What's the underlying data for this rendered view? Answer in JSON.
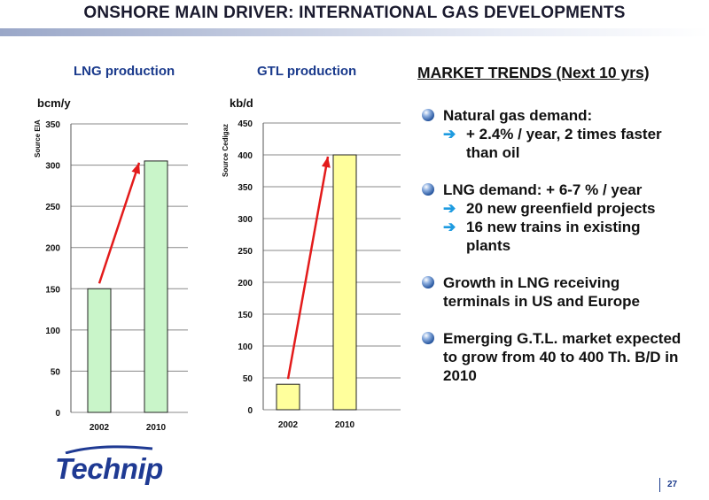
{
  "title": "ONSHORE MAIN DRIVER: INTERNATIONAL GAS DEVELOPMENTS",
  "colors": {
    "title_bar": "#9aa7c8",
    "chart_title": "#1a3a8c",
    "arrow_red": "#e31b1b",
    "lng_bar": "#c9f5c9",
    "gtl_bar": "#ffff9c",
    "bullet_arrow": "#1e9be0",
    "logo": "#1f3a93"
  },
  "lng": {
    "title": "LNG production",
    "unit": "bcm/y",
    "source": "Source EIA"
  },
  "gtl": {
    "title": "GTL production",
    "unit": "kb/d",
    "source": "Source Cedigaz"
  },
  "chart_data": [
    {
      "type": "bar",
      "title": "LNG production",
      "ylabel": "bcm/y",
      "categories": [
        "2002",
        "2010"
      ],
      "values": [
        150,
        305
      ],
      "ylim": [
        0,
        350
      ],
      "yticks": [
        0,
        50,
        100,
        150,
        200,
        250,
        300,
        350
      ],
      "grid": true
    },
    {
      "type": "bar",
      "title": "GTL production",
      "ylabel": "kb/d",
      "categories": [
        "2002",
        "2010"
      ],
      "values": [
        40,
        400
      ],
      "ylim": [
        0,
        450
      ],
      "yticks": [
        0,
        50,
        100,
        150,
        200,
        250,
        300,
        350,
        400,
        450
      ],
      "grid": true
    }
  ],
  "trends": {
    "heading": "MARKET TRENDS (Next 10 yrs)",
    "b1": "Natural gas demand:",
    "b1s1": "+ 2.4% / year, 2 times faster than oil",
    "b2": "LNG demand: + 6-7 % / year",
    "b2s1": "20 new greenfield projects",
    "b2s2": "16 new trains in existing plants",
    "b3": "Growth in LNG receiving terminals in US and Europe",
    "b4": "Emerging G.T.L. market expected to grow from 40 to 400 Th. B/D in 2010",
    "arrow_glyph": "➔"
  },
  "logo": "Technip",
  "page_number": "27"
}
